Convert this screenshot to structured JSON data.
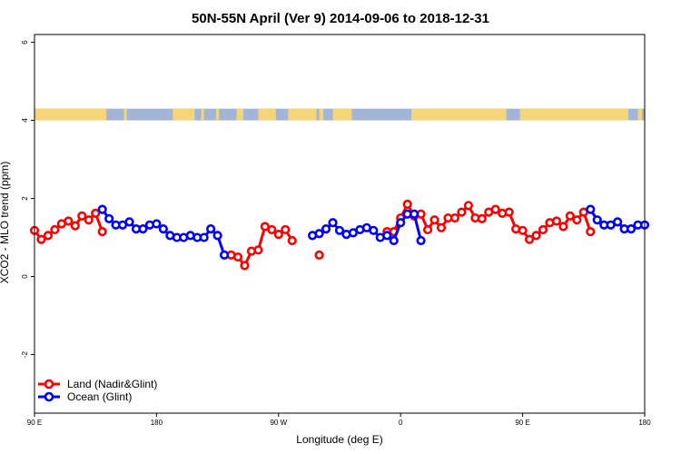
{
  "chart_data": {
    "type": "line",
    "title": "50N-55N April (Ver 9)   2014-09-06 to 2018-12-31",
    "xlabel": "Longitude (deg E)",
    "ylabel": "XCO2 - MLO trend (ppm)",
    "xlim": [
      90,
      540
    ],
    "ylim": [
      -3.5,
      6.2
    ],
    "x_ticks": [
      {
        "value": 90,
        "label": "90 E"
      },
      {
        "value": 180,
        "label": "180"
      },
      {
        "value": 270,
        "label": "90 W"
      },
      {
        "value": 360,
        "label": "0"
      },
      {
        "value": 450,
        "label": "90 E"
      },
      {
        "value": 540,
        "label": "180"
      }
    ],
    "y_ticks": [
      {
        "value": -2,
        "label": "-2"
      },
      {
        "value": 0,
        "label": "0"
      },
      {
        "value": 2,
        "label": "2"
      },
      {
        "value": 4,
        "label": "4"
      },
      {
        "value": 6,
        "label": "6"
      }
    ],
    "legend": {
      "position": "bottom-left"
    },
    "land_ocean_strip": {
      "y_range": [
        4.0,
        4.3
      ],
      "ocean_color": "#a3b5d6",
      "land_color": "#f5d57a",
      "land_longitude_ranges": [
        [
          90,
          143
        ],
        [
          156,
          158
        ],
        [
          192,
          208
        ],
        [
          213,
          215
        ],
        [
          224,
          226
        ],
        [
          239,
          244
        ],
        [
          255,
          268
        ],
        [
          277,
          298
        ],
        [
          300,
          303
        ],
        [
          310,
          324
        ],
        [
          368,
          438
        ],
        [
          448,
          528
        ],
        [
          535,
          538
        ]
      ]
    },
    "series": [
      {
        "name": "Land (Nadir&Glint)",
        "color": "#ff0000",
        "segments": [
          [
            [
              90,
              1.18
            ],
            [
              95,
              0.95
            ],
            [
              100,
              1.05
            ],
            [
              105,
              1.2
            ],
            [
              110,
              1.35
            ],
            [
              115,
              1.42
            ],
            [
              120,
              1.3
            ],
            [
              125,
              1.55
            ],
            [
              130,
              1.45
            ],
            [
              135,
              1.62
            ],
            [
              140,
              1.15
            ]
          ],
          [
            [
              235,
              0.55
            ],
            [
              240,
              0.5
            ],
            [
              245,
              0.28
            ],
            [
              250,
              0.65
            ],
            [
              255,
              0.68
            ],
            [
              260,
              1.28
            ],
            [
              265,
              1.2
            ],
            [
              270,
              1.08
            ],
            [
              275,
              1.2
            ],
            [
              280,
              0.92
            ]
          ],
          [
            [
              300,
              0.55
            ]
          ],
          [
            [
              350,
              1.15
            ],
            [
              355,
              1.15
            ],
            [
              360,
              1.5
            ],
            [
              365,
              1.85
            ],
            [
              370,
              1.55
            ],
            [
              375,
              1.6
            ],
            [
              380,
              1.2
            ],
            [
              385,
              1.45
            ],
            [
              390,
              1.25
            ],
            [
              395,
              1.5
            ],
            [
              400,
              1.5
            ],
            [
              405,
              1.65
            ],
            [
              410,
              1.82
            ],
            [
              415,
              1.5
            ],
            [
              420,
              1.48
            ],
            [
              425,
              1.65
            ],
            [
              430,
              1.72
            ],
            [
              435,
              1.62
            ],
            [
              440,
              1.65
            ],
            [
              445,
              1.22
            ],
            [
              450,
              1.18
            ],
            [
              455,
              0.95
            ],
            [
              460,
              1.05
            ],
            [
              465,
              1.2
            ],
            [
              470,
              1.38
            ],
            [
              475,
              1.42
            ],
            [
              480,
              1.28
            ],
            [
              485,
              1.55
            ],
            [
              490,
              1.45
            ],
            [
              495,
              1.65
            ],
            [
              500,
              1.15
            ]
          ]
        ]
      },
      {
        "name": "Ocean (Glint)",
        "color": "#0000ff",
        "segments": [
          [
            [
              140,
              1.72
            ],
            [
              145,
              1.48
            ],
            [
              150,
              1.32
            ],
            [
              155,
              1.32
            ],
            [
              160,
              1.4
            ],
            [
              165,
              1.22
            ],
            [
              170,
              1.22
            ],
            [
              175,
              1.32
            ],
            [
              180,
              1.35
            ],
            [
              185,
              1.22
            ],
            [
              190,
              1.05
            ],
            [
              195,
              1.0
            ],
            [
              200,
              1.0
            ],
            [
              205,
              1.05
            ],
            [
              210,
              1.0
            ],
            [
              215,
              1.0
            ],
            [
              220,
              1.22
            ],
            [
              225,
              1.05
            ],
            [
              230,
              0.55
            ]
          ],
          [
            [
              295,
              1.05
            ],
            [
              300,
              1.1
            ],
            [
              305,
              1.22
            ],
            [
              310,
              1.38
            ],
            [
              315,
              1.18
            ],
            [
              320,
              1.08
            ],
            [
              325,
              1.12
            ],
            [
              330,
              1.2
            ],
            [
              335,
              1.25
            ],
            [
              340,
              1.18
            ],
            [
              345,
              1.0
            ],
            [
              350,
              1.05
            ],
            [
              355,
              0.92
            ],
            [
              360,
              1.38
            ],
            [
              365,
              1.6
            ],
            [
              370,
              1.6
            ],
            [
              375,
              0.92
            ]
          ],
          [
            [
              500,
              1.72
            ],
            [
              505,
              1.45
            ],
            [
              510,
              1.32
            ],
            [
              515,
              1.32
            ],
            [
              520,
              1.4
            ],
            [
              525,
              1.22
            ],
            [
              530,
              1.22
            ],
            [
              535,
              1.32
            ],
            [
              540,
              1.32
            ]
          ]
        ]
      }
    ]
  }
}
